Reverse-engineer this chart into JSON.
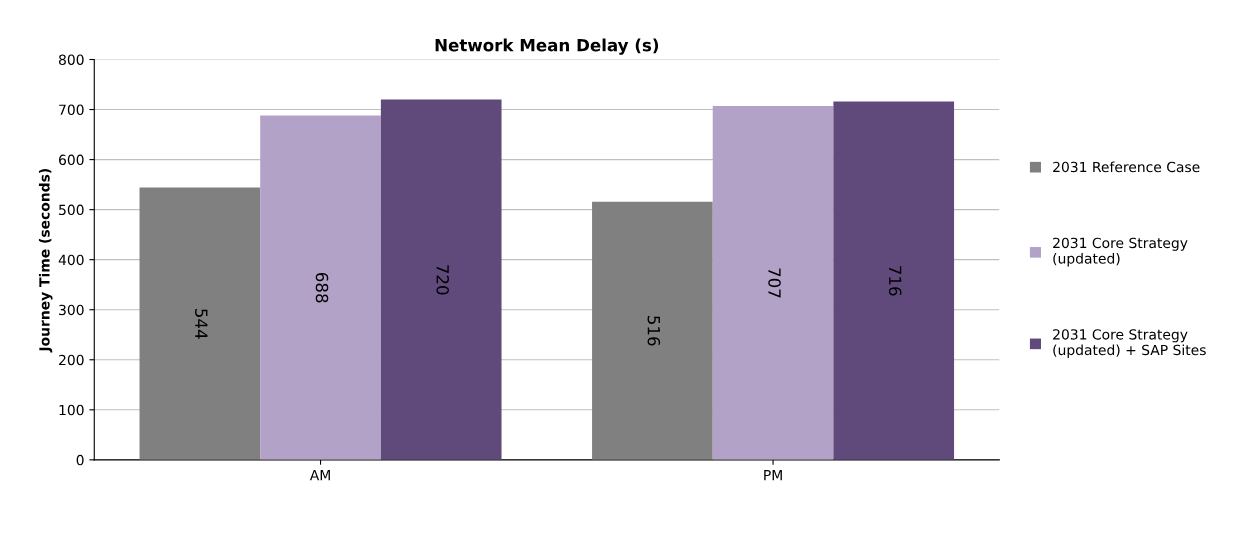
{
  "chart_data": {
    "type": "bar",
    "title": "Network Mean Delay (s)",
    "ylabel": "Journey Time (seconds)",
    "categories": [
      "AM",
      "PM"
    ],
    "series": [
      {
        "name": "2031 Reference Case",
        "color": "#808080",
        "values": [
          544,
          516
        ]
      },
      {
        "name": "2031 Core Strategy\n(updated)",
        "color": "#b3a2c7",
        "values": [
          688,
          707
        ]
      },
      {
        "name": "2031 Core Strategy\n(updated) + SAP Sites",
        "color": "#604a7b",
        "values": [
          720,
          716
        ]
      }
    ],
    "ylim": [
      0,
      800
    ],
    "yticks": [
      0,
      100,
      200,
      300,
      400,
      500,
      600,
      700,
      800
    ],
    "grid": "y",
    "legend": "right",
    "data_labels": true
  }
}
